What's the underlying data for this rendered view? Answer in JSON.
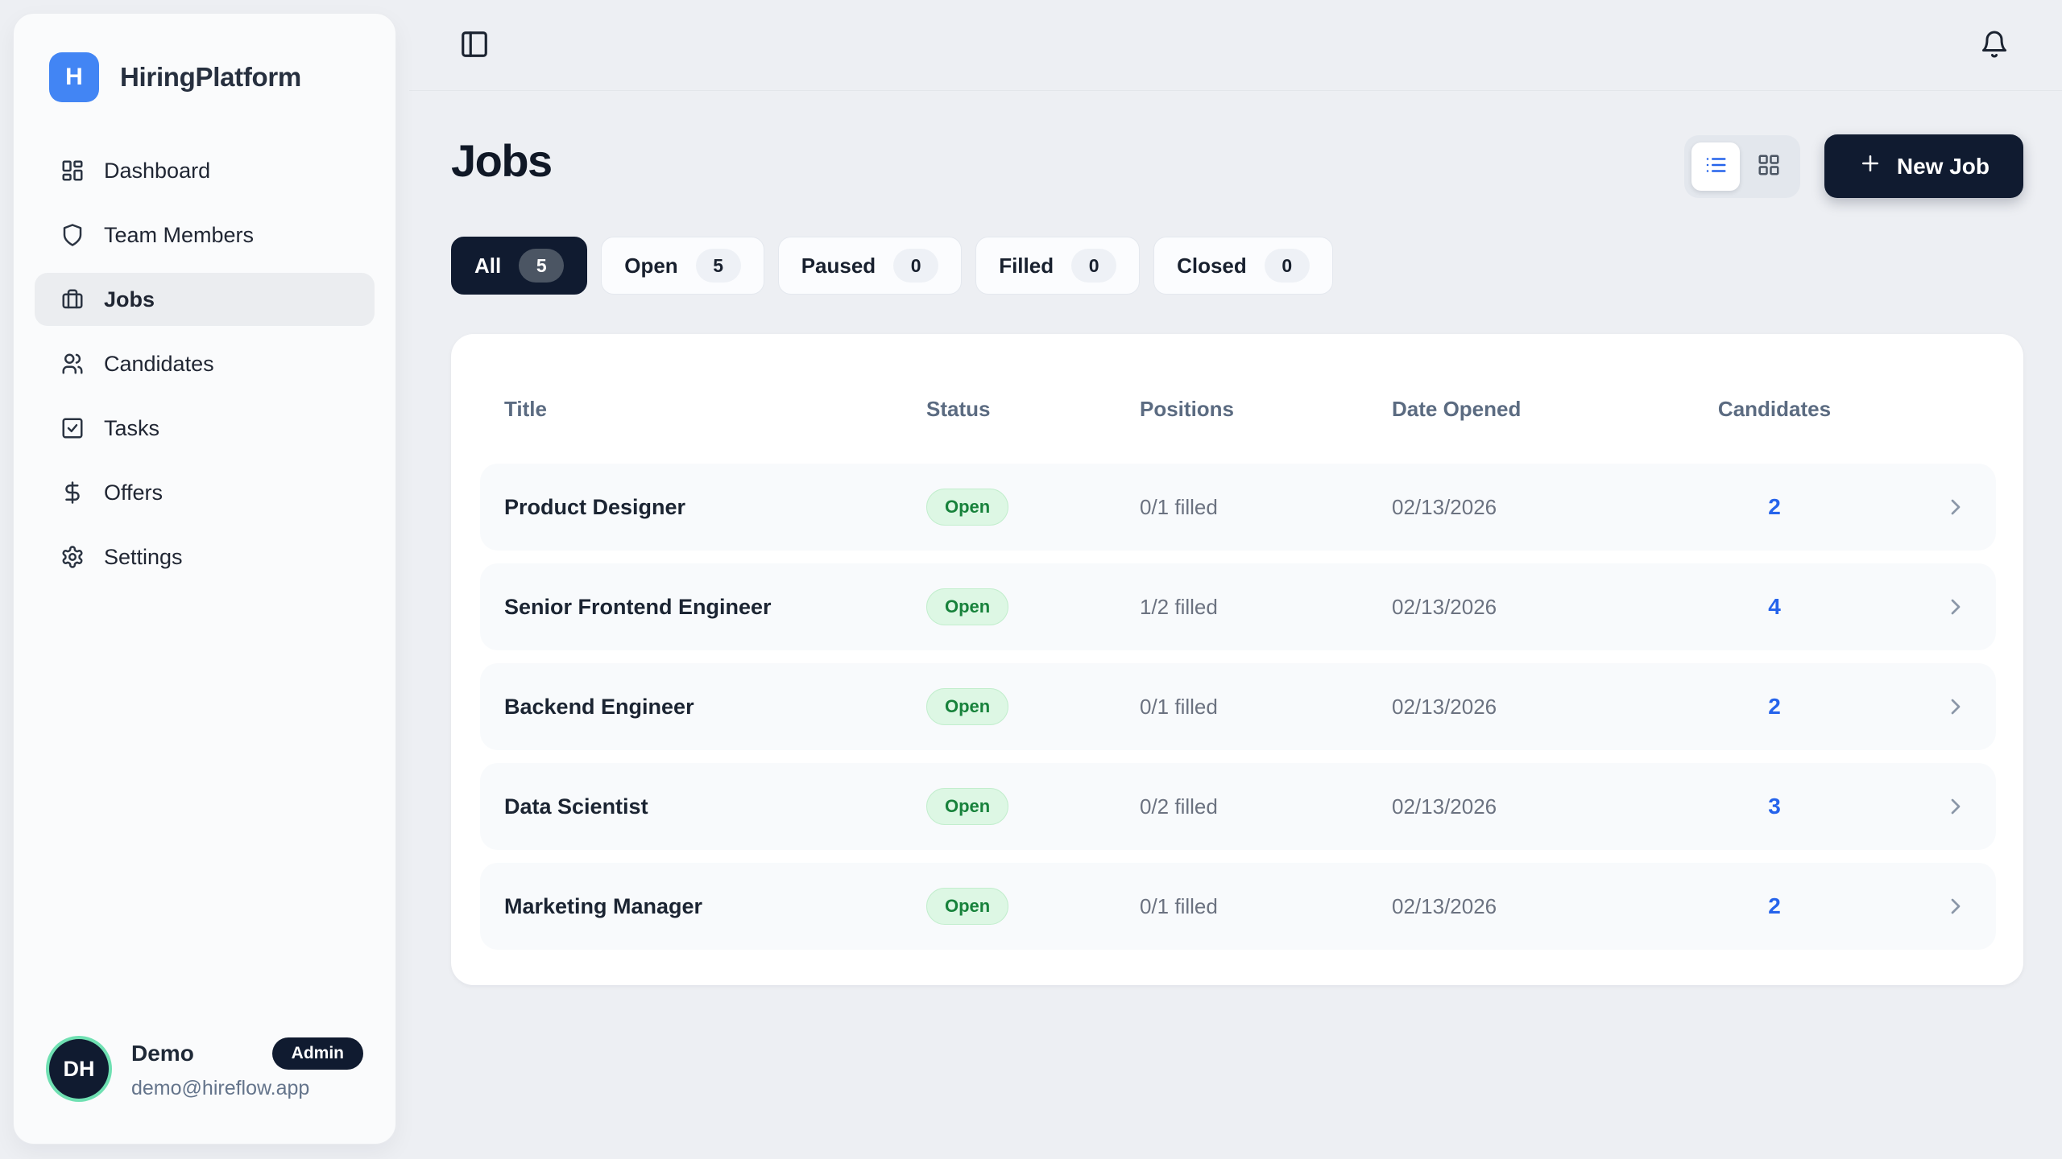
{
  "brand": {
    "name": "HiringPlatform",
    "logo_letter": "H"
  },
  "sidebar": {
    "items": [
      {
        "label": "Dashboard",
        "icon": "dashboard",
        "active": false
      },
      {
        "label": "Team Members",
        "icon": "shield",
        "active": false
      },
      {
        "label": "Jobs",
        "icon": "briefcase",
        "active": true
      },
      {
        "label": "Candidates",
        "icon": "users",
        "active": false
      },
      {
        "label": "Tasks",
        "icon": "tasks",
        "active": false
      },
      {
        "label": "Offers",
        "icon": "dollar",
        "active": false
      },
      {
        "label": "Settings",
        "icon": "gear",
        "active": false
      }
    ],
    "user": {
      "initials": "DH",
      "name": "Demo",
      "role_badge": "Admin",
      "email": "demo@hireflow.app"
    }
  },
  "page": {
    "title": "Jobs"
  },
  "toolbar": {
    "new_job_label": "New Job"
  },
  "filters": [
    {
      "label": "All",
      "count": "5",
      "active": true
    },
    {
      "label": "Open",
      "count": "5",
      "active": false
    },
    {
      "label": "Paused",
      "count": "0",
      "active": false
    },
    {
      "label": "Filled",
      "count": "0",
      "active": false
    },
    {
      "label": "Closed",
      "count": "0",
      "active": false
    }
  ],
  "table": {
    "columns": [
      "Title",
      "Status",
      "Positions",
      "Date Opened",
      "Candidates"
    ],
    "rows": [
      {
        "title": "Product Designer",
        "status": "Open",
        "positions": "0/1 filled",
        "date_opened": "02/13/2026",
        "candidates": "2"
      },
      {
        "title": "Senior Frontend Engineer",
        "status": "Open",
        "positions": "1/2 filled",
        "date_opened": "02/13/2026",
        "candidates": "4"
      },
      {
        "title": "Backend Engineer",
        "status": "Open",
        "positions": "0/1 filled",
        "date_opened": "02/13/2026",
        "candidates": "2"
      },
      {
        "title": "Data Scientist",
        "status": "Open",
        "positions": "0/2 filled",
        "date_opened": "02/13/2026",
        "candidates": "3"
      },
      {
        "title": "Marketing Manager",
        "status": "Open",
        "positions": "0/1 filled",
        "date_opened": "02/13/2026",
        "candidates": "2"
      }
    ]
  },
  "colors": {
    "accent_blue": "#4285f4",
    "accent_blue_deep": "#2563eb",
    "navy": "#101b30",
    "page_bg": "#edeff3",
    "sidebar_bg": "#fafbfc",
    "badge_green_bg": "#ddf7e4",
    "badge_green_text": "#17823b",
    "avatar_ring": "#6fe0b2"
  }
}
